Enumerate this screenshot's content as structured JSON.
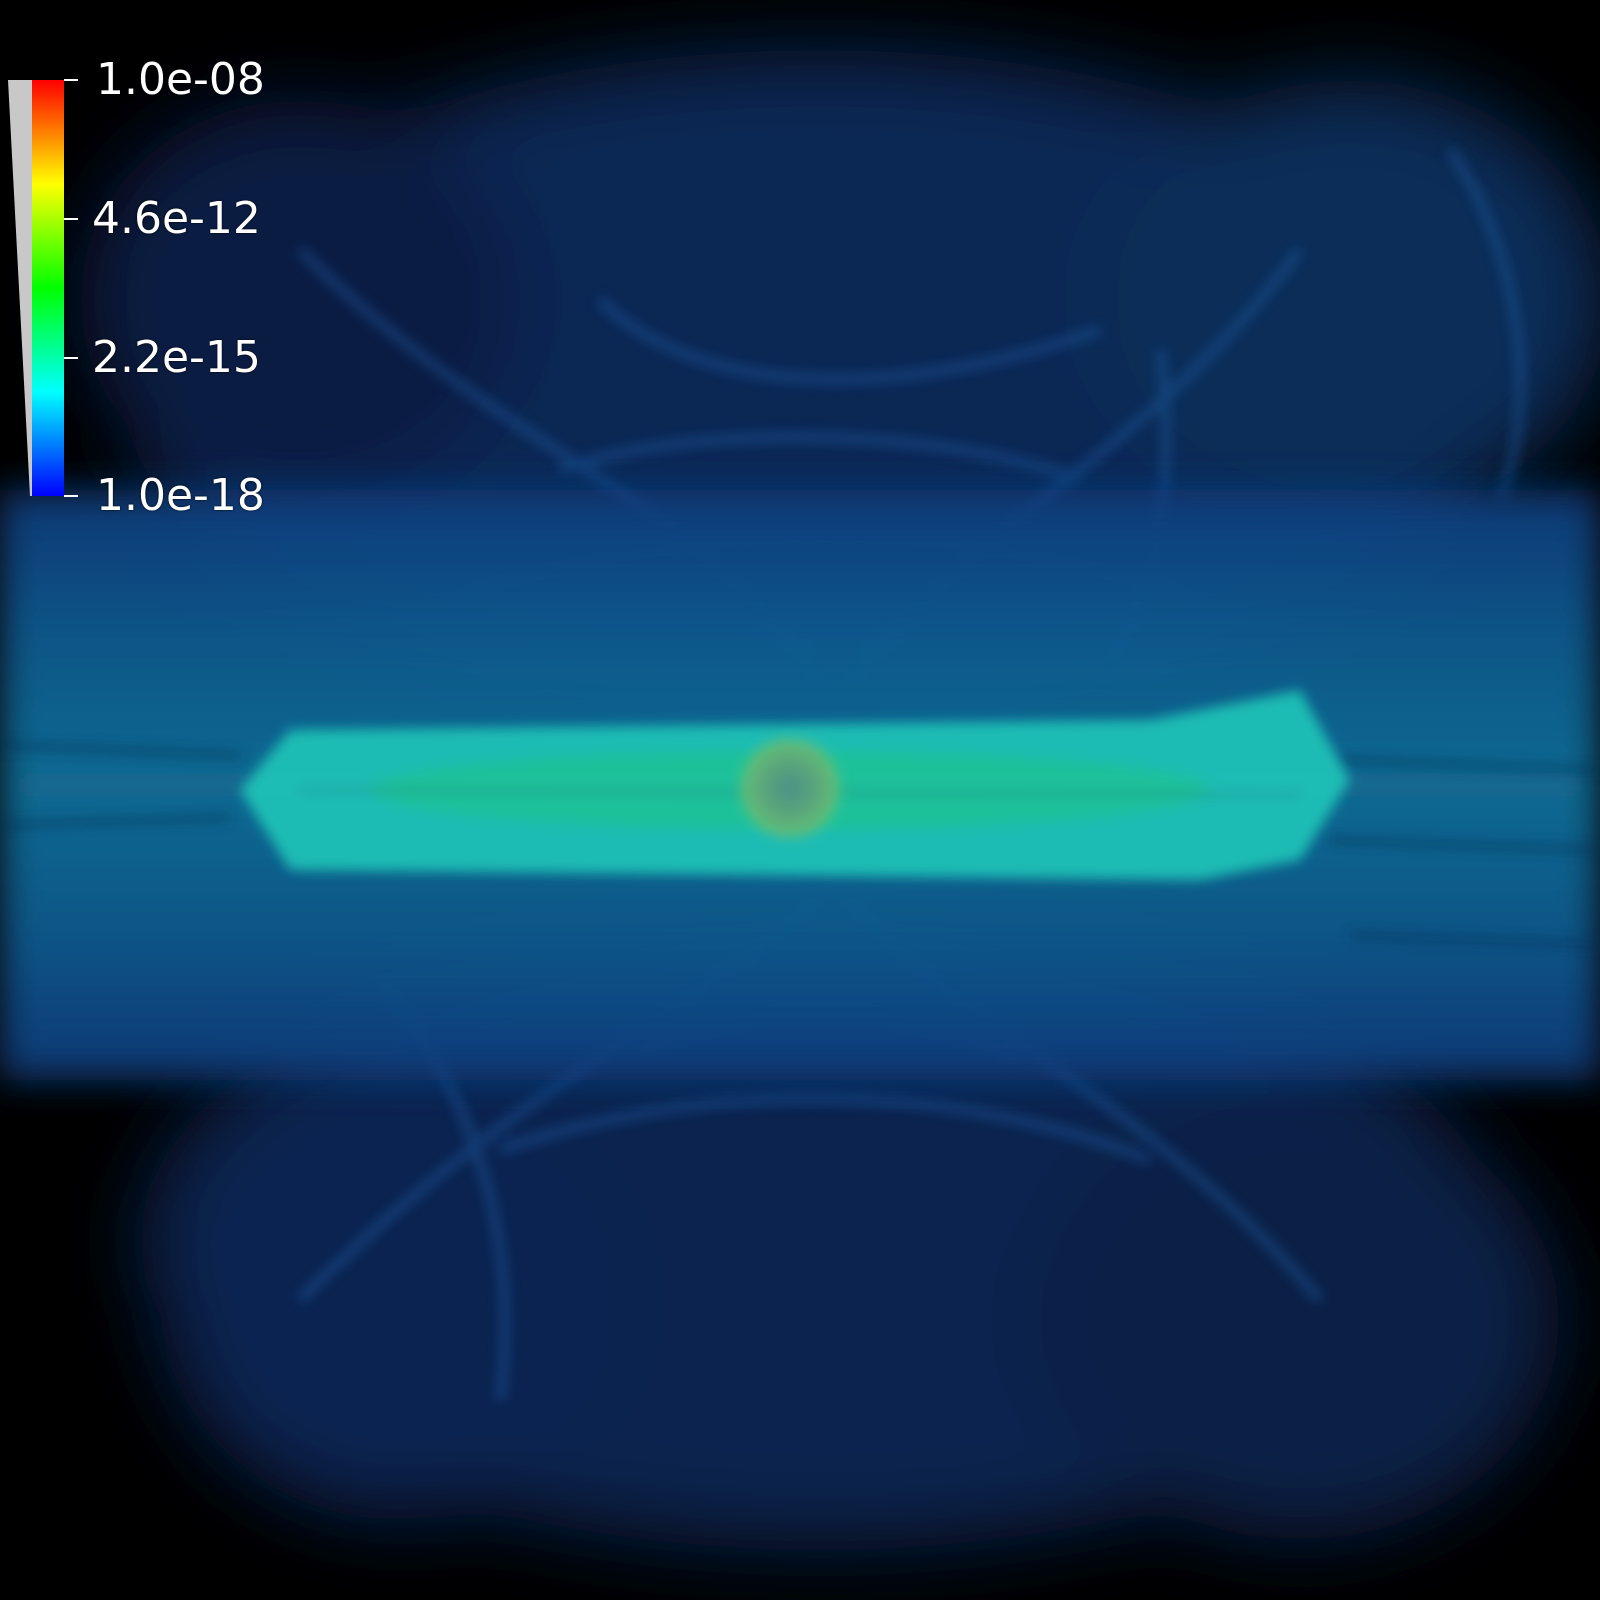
{
  "colorbar": {
    "tick_labels": [
      "1.0e-08",
      "4.6e-12",
      "2.2e-15",
      "1.0e-18"
    ],
    "colormap": [
      "#0000ff",
      "#00ffff",
      "#00ff00",
      "#ffff00",
      "#ff0000"
    ],
    "opacity_ramp_color": "#c8c8c8",
    "scale": "log"
  },
  "scene": {
    "background_color": "#000000",
    "envelope_color": "#0a2a6a",
    "disk_color": "#1fd6c0",
    "core_color": "#6fbf6f"
  }
}
